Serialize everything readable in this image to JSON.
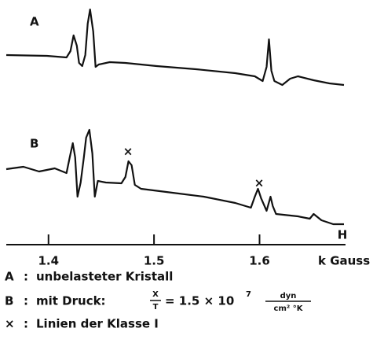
{
  "chart_data": {
    "type": "line",
    "xlabel": "k Gauss",
    "axis_label": "H",
    "xlim": [
      1.36,
      1.68
    ],
    "xticks": [
      1.4,
      1.5,
      1.6
    ],
    "ylim": [
      0,
      300
    ],
    "series": [
      {
        "name": "A",
        "color": "#111111",
        "x": [
          1.36,
          1.3985,
          1.4171,
          1.4208,
          1.4238,
          1.4268,
          1.429,
          1.432,
          1.4349,
          1.4372,
          1.4394,
          1.4424,
          1.4446,
          1.4476,
          1.458,
          1.4729,
          1.5026,
          1.5398,
          1.577,
          1.5955,
          1.603,
          1.6067,
          1.6089,
          1.6112,
          1.6141,
          1.6216,
          1.629,
          1.6364,
          1.6513,
          1.6662,
          1.68
        ],
        "values": [
          240,
          239,
          237,
          245,
          265,
          252,
          230,
          226,
          240,
          280,
          298,
          270,
          225,
          228,
          231,
          230,
          226,
          222,
          217,
          213,
          207,
          225,
          260,
          220,
          207,
          202,
          210,
          213,
          208,
          204,
          202
        ]
      },
      {
        "name": "B",
        "color": "#111111",
        "x": [
          1.36,
          1.3762,
          1.3911,
          1.4059,
          1.4171,
          1.4201,
          1.423,
          1.4253,
          1.4275,
          1.4305,
          1.4335,
          1.4357,
          1.4387,
          1.4416,
          1.4439,
          1.4468,
          1.4543,
          1.4691,
          1.4729,
          1.4758,
          1.4788,
          1.4818,
          1.4877,
          1.5175,
          1.5472,
          1.577,
          1.5918,
          1.5955,
          1.5985,
          1.6015,
          1.6067,
          1.6104,
          1.6126,
          1.6156,
          1.6364,
          1.6476,
          1.6513,
          1.6587,
          1.6699,
          1.68
        ],
        "values": [
          95,
          98,
          92,
          96,
          90,
          110,
          128,
          110,
          60,
          78,
          110,
          135,
          145,
          115,
          60,
          80,
          78,
          77,
          85,
          105,
          100,
          75,
          70,
          65,
          60,
          52,
          46,
          60,
          70,
          58,
          42,
          60,
          48,
          38,
          35,
          32,
          38,
          30,
          25,
          25
        ]
      }
    ],
    "annotations": [
      "×",
      "×"
    ],
    "legend": {
      "line_a": {
        "key": "A",
        "sep": ":",
        "text": "unbelasteter Kristall"
      },
      "line_b": {
        "key": "B",
        "sep": ":",
        "text": "mit Druck:",
        "num": "X",
        "den": "T",
        "eq": "= 1.5 × 10",
        "exp": "7",
        "unit_num": "dyn",
        "unit_den": "cm² °K"
      },
      "line_x": {
        "key": "×",
        "sep": ":",
        "text": "Linien der Klasse I"
      }
    }
  }
}
